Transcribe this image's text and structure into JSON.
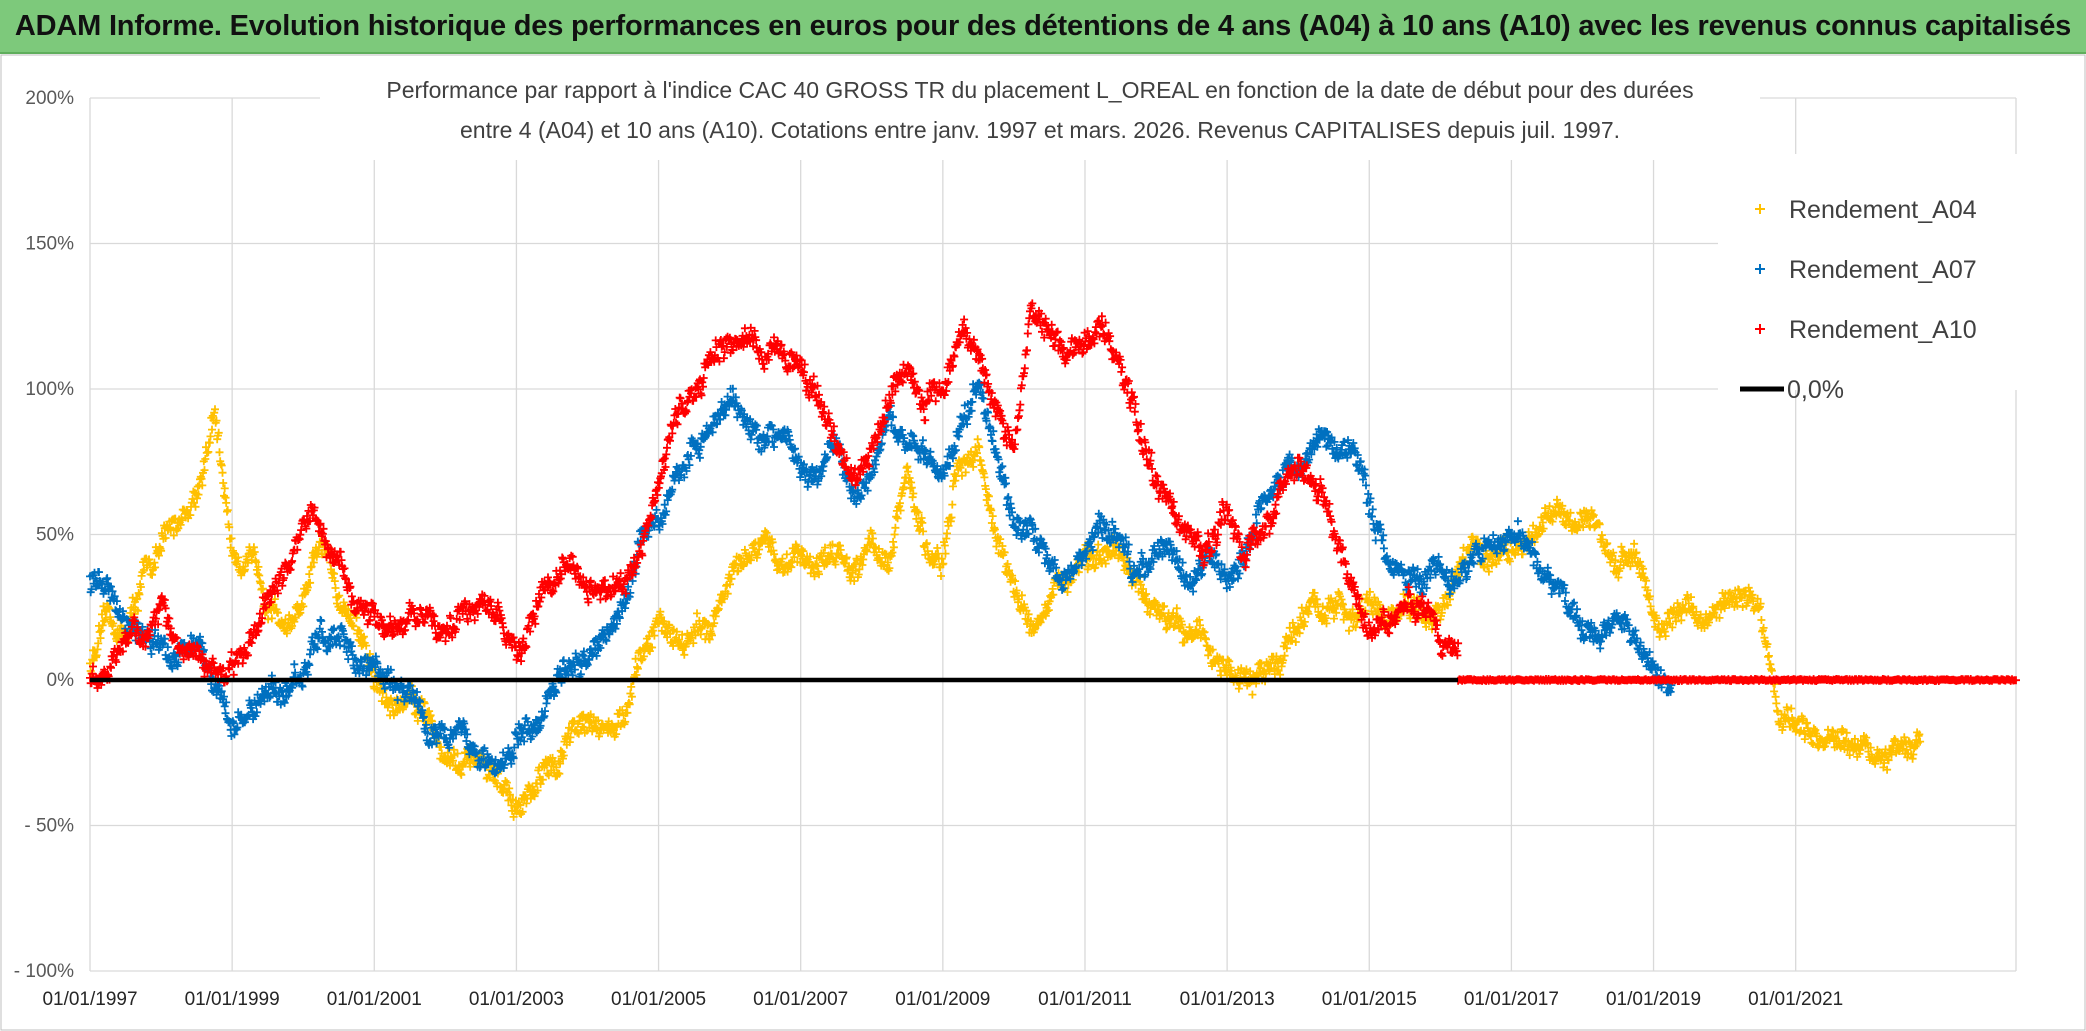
{
  "banner": {
    "title": "ADAM Informe. Evolution historique des performances en euros pour des détentions de 4 ans (A04) à 10 ans (A10) avec les revenus connus capitalisés"
  },
  "colors": {
    "banner_bg": "#7dc97b",
    "A04": "#ffc000",
    "A07": "#0070c0",
    "A10": "#ff0000",
    "zero": "#000000",
    "grid": "#d9d9d9"
  },
  "chart_data": {
    "type": "scatter",
    "title": "Performance par rapport à l'indice CAC 40 GROSS TR  du placement L_OREAL en fonction de la date de début pour des durées",
    "subtitle": "entre 4 (A04) et 10 ans (A10). Cotations entre janv. 1997 et mars. 2026. Revenus CAPITALISES depuis juil. 1997.",
    "xlabel": "",
    "ylabel": "",
    "xlim": [
      1997.0,
      2024.1
    ],
    "ylim": [
      -100,
      200
    ],
    "y_ticks": [
      200,
      150,
      100,
      50,
      0,
      -50,
      -100
    ],
    "y_tick_labels": [
      "200%",
      "150%",
      "100%",
      "50%",
      "0%",
      "- 50%",
      "- 100%"
    ],
    "x_ticks": [
      1997,
      1999,
      2001,
      2003,
      2005,
      2007,
      2009,
      2011,
      2013,
      2015,
      2017,
      2019,
      2021
    ],
    "x_tick_labels": [
      "01/01/1997",
      "01/01/1999",
      "01/01/2001",
      "01/01/2003",
      "01/01/2005",
      "01/01/2007",
      "01/01/2009",
      "01/01/2011",
      "01/01/2013",
      "01/01/2015",
      "01/01/2017",
      "01/01/2019",
      "01/01/2021"
    ],
    "legend_position": "top-right",
    "series": [
      {
        "name": "Rendement_A04",
        "key": "A04",
        "marker": "+",
        "x": [
          1997.0,
          1997.25,
          1997.5,
          1997.75,
          1998.0,
          1998.25,
          1998.5,
          1998.75,
          1999.0,
          1999.25,
          1999.5,
          1999.75,
          2000.0,
          2000.25,
          2000.5,
          2000.75,
          2001.0,
          2001.25,
          2001.5,
          2001.75,
          2002.0,
          2002.25,
          2002.5,
          2002.75,
          2003.0,
          2003.25,
          2003.5,
          2003.75,
          2004.0,
          2004.25,
          2004.5,
          2004.75,
          2005.0,
          2005.25,
          2005.5,
          2005.75,
          2006.0,
          2006.25,
          2006.5,
          2006.75,
          2007.0,
          2007.25,
          2007.5,
          2007.75,
          2008.0,
          2008.25,
          2008.5,
          2008.75,
          2009.0,
          2009.25,
          2009.5,
          2009.75,
          2010.0,
          2010.25,
          2010.5,
          2010.75,
          2011.0,
          2011.25,
          2011.5,
          2011.75,
          2012.0,
          2012.25,
          2012.5,
          2012.75,
          2013.0,
          2013.25,
          2013.5,
          2013.75,
          2014.0,
          2014.25,
          2014.5,
          2014.75,
          2015.0,
          2015.25,
          2015.5,
          2015.75,
          2016.0,
          2016.25,
          2016.5,
          2016.75,
          2017.0,
          2017.25,
          2017.5,
          2017.75,
          2018.0,
          2018.25,
          2018.5,
          2018.75,
          2019.0,
          2019.25,
          2019.5,
          2019.75,
          2020.0,
          2020.25,
          2020.5,
          2020.75,
          2021.0,
          2021.25,
          2021.5,
          2021.75,
          2022.0,
          2022.25,
          2022.5,
          2022.75
        ],
        "y": [
          5,
          20,
          15,
          35,
          45,
          55,
          65,
          90,
          45,
          40,
          30,
          20,
          25,
          45,
          30,
          20,
          0,
          -10,
          -5,
          -10,
          -25,
          -30,
          -30,
          -35,
          -45,
          -40,
          -30,
          -20,
          -10,
          -15,
          -15,
          5,
          20,
          15,
          15,
          20,
          35,
          40,
          45,
          40,
          45,
          40,
          45,
          40,
          50,
          40,
          70,
          45,
          40,
          75,
          80,
          50,
          30,
          20,
          25,
          35,
          45,
          40,
          40,
          30,
          20,
          25,
          20,
          10,
          5,
          -3,
          0,
          10,
          20,
          25,
          25,
          20,
          25,
          20,
          25,
          20,
          20,
          35,
          45,
          40,
          45,
          50,
          55,
          60,
          55,
          50,
          40,
          45,
          20,
          20,
          25,
          20,
          25,
          30,
          25,
          -10,
          -15,
          -20,
          -20,
          -25,
          -20,
          -25,
          -25,
          -20
        ]
      },
      {
        "name": "Rendement_A07",
        "key": "A07",
        "marker": "+",
        "x": [
          1997.0,
          1997.25,
          1997.5,
          1997.75,
          1998.0,
          1998.25,
          1998.5,
          1998.75,
          1999.0,
          1999.25,
          1999.5,
          1999.75,
          2000.0,
          2000.25,
          2000.5,
          2000.75,
          2001.0,
          2001.25,
          2001.5,
          2001.75,
          2002.0,
          2002.25,
          2002.5,
          2002.75,
          2003.0,
          2003.25,
          2003.5,
          2003.75,
          2004.0,
          2004.25,
          2004.5,
          2004.75,
          2005.0,
          2005.25,
          2005.5,
          2005.75,
          2006.0,
          2006.25,
          2006.5,
          2006.75,
          2007.0,
          2007.25,
          2007.5,
          2007.75,
          2008.0,
          2008.25,
          2008.5,
          2008.75,
          2009.0,
          2009.25,
          2009.5,
          2009.75,
          2010.0,
          2010.25,
          2010.5,
          2010.75,
          2011.0,
          2011.25,
          2011.5,
          2011.75,
          2012.0,
          2012.25,
          2012.5,
          2012.75,
          2013.0,
          2013.25,
          2013.5,
          2013.75,
          2014.0,
          2014.25,
          2014.5,
          2014.75,
          2015.0,
          2015.25,
          2015.5,
          2015.75,
          2016.0,
          2016.25,
          2016.5,
          2016.75,
          2017.0,
          2017.25,
          2017.5,
          2017.75,
          2018.0,
          2018.25,
          2018.5,
          2018.75,
          2019.0,
          2019.25
        ],
        "y": [
          35,
          30,
          20,
          15,
          10,
          10,
          15,
          0,
          -20,
          -10,
          -5,
          0,
          0,
          20,
          10,
          5,
          5,
          0,
          -5,
          -15,
          -20,
          -15,
          -25,
          -35,
          -20,
          -15,
          0,
          5,
          5,
          15,
          25,
          50,
          55,
          70,
          80,
          85,
          95,
          90,
          80,
          85,
          75,
          70,
          80,
          65,
          75,
          95,
          85,
          75,
          70,
          90,
          100,
          80,
          55,
          50,
          40,
          35,
          40,
          50,
          45,
          35,
          45,
          40,
          35,
          40,
          35,
          45,
          60,
          70,
          75,
          80,
          85,
          80,
          60,
          45,
          40,
          35,
          40,
          35,
          40,
          45,
          50,
          45,
          35,
          25,
          20,
          15,
          20,
          10,
          5,
          -5
        ]
      },
      {
        "name": "Rendement_A10",
        "key": "A10",
        "marker": "+",
        "x": [
          1997.0,
          1997.25,
          1997.5,
          1997.75,
          1998.0,
          1998.25,
          1998.5,
          1998.75,
          1999.0,
          1999.25,
          1999.5,
          1999.75,
          2000.0,
          2000.25,
          2000.5,
          2000.75,
          2001.0,
          2001.25,
          2001.5,
          2001.75,
          2002.0,
          2002.25,
          2002.5,
          2002.75,
          2003.0,
          2003.25,
          2003.5,
          2003.75,
          2004.0,
          2004.25,
          2004.5,
          2004.75,
          2005.0,
          2005.25,
          2005.5,
          2005.75,
          2006.0,
          2006.25,
          2006.5,
          2006.75,
          2007.0,
          2007.25,
          2007.5,
          2007.75,
          2008.0,
          2008.25,
          2008.5,
          2008.75,
          2009.0,
          2009.25,
          2009.5,
          2009.75,
          2010.0,
          2010.25,
          2010.5,
          2010.75,
          2011.0,
          2011.25,
          2011.5,
          2011.75,
          2012.0,
          2012.25,
          2012.5,
          2012.75,
          2013.0,
          2013.25,
          2013.5,
          2013.75,
          2014.0,
          2014.25,
          2014.5,
          2014.75,
          2015.0,
          2015.25,
          2015.5,
          2015.75,
          2016.0,
          2016.25
        ],
        "y": [
          0,
          5,
          10,
          15,
          20,
          15,
          10,
          5,
          5,
          15,
          25,
          35,
          55,
          50,
          40,
          30,
          20,
          15,
          20,
          25,
          15,
          20,
          30,
          25,
          10,
          20,
          35,
          40,
          35,
          30,
          30,
          45,
          75,
          90,
          100,
          110,
          115,
          120,
          110,
          115,
          105,
          95,
          85,
          70,
          80,
          100,
          110,
          95,
          100,
          120,
          110,
          90,
          80,
          130,
          120,
          115,
          115,
          120,
          110,
          90,
          70,
          60,
          45,
          40,
          55,
          45,
          50,
          65,
          75,
          70,
          55,
          30,
          20,
          20,
          25,
          25,
          15,
          10
        ]
      },
      {
        "name": "Rendement_A10 (0)",
        "key": "A10",
        "marker": "+",
        "legend": false,
        "x_range": [
          2016.25,
          2024.1
        ],
        "y": 0
      },
      {
        "name": "0,0%",
        "key": "zero",
        "marker": "line",
        "y": 0
      }
    ],
    "legend_entries": [
      "Rendement_A04",
      "Rendement_A07",
      "Rendement_A10",
      "0,0%"
    ]
  }
}
